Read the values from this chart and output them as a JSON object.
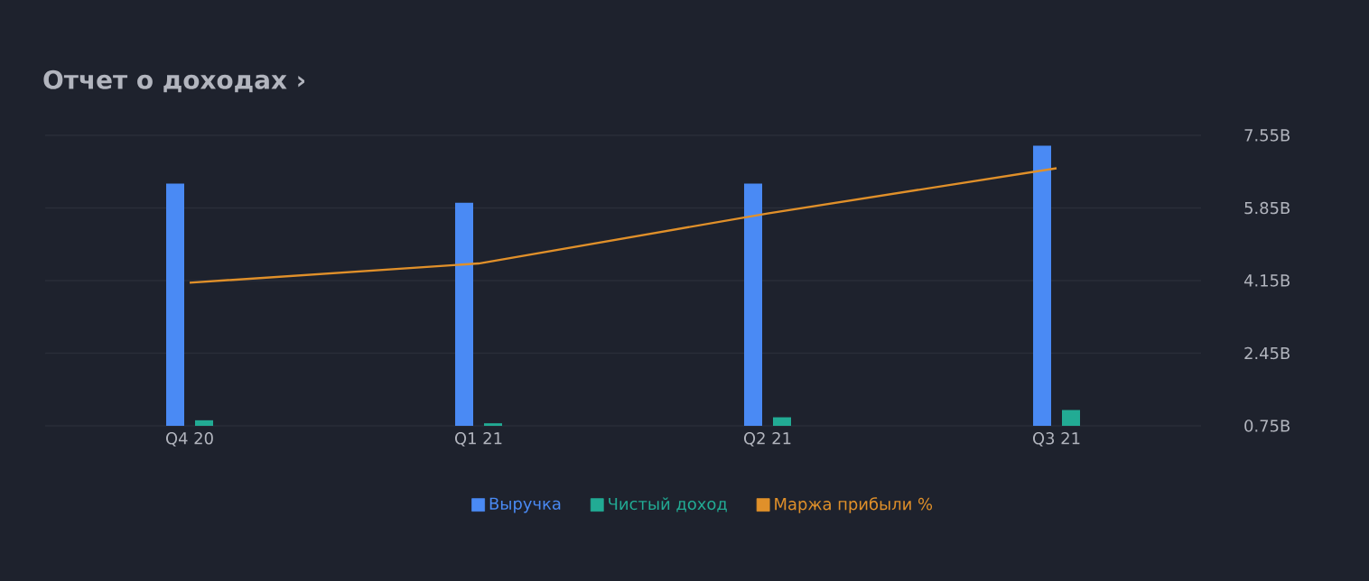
{
  "chart_data": {
    "type": "bar",
    "title": "Отчет о доходах ›",
    "categories": [
      "Q4 20",
      "Q1 21",
      "Q2 21",
      "Q3 21"
    ],
    "series": [
      {
        "name": "Выручка",
        "color": "#4a8af4",
        "values": [
          6.42,
          5.97,
          6.42,
          7.31
        ]
      },
      {
        "name": "Чистый доход",
        "color": "#22ab94",
        "values": [
          0.88,
          0.81,
          0.95,
          1.12
        ]
      },
      {
        "name": "Маржа прибыли %",
        "type": "line",
        "color": "#e0902a",
        "values": [
          4.1,
          4.55,
          5.72,
          6.78
        ]
      }
    ],
    "ylim": [
      0.75,
      7.55
    ],
    "yticks": [
      {
        "value": 0.75,
        "label": "0.75B"
      },
      {
        "value": 2.45,
        "label": "2.45B"
      },
      {
        "value": 4.15,
        "label": "4.15B"
      },
      {
        "value": 5.85,
        "label": "5.85B"
      },
      {
        "value": 7.55,
        "label": "7.55B"
      }
    ],
    "grid": "y",
    "legend": "bottom"
  }
}
